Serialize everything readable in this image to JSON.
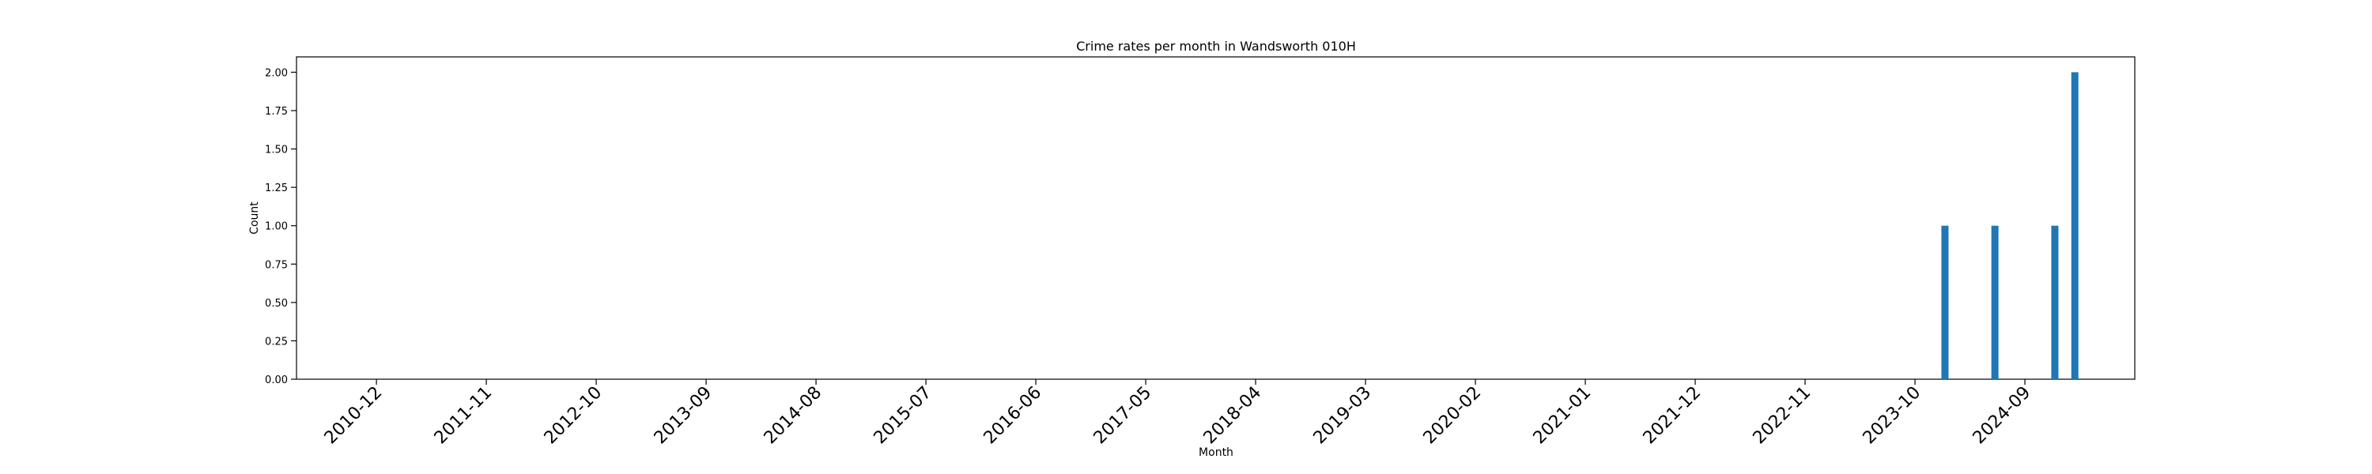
{
  "chart_data": {
    "type": "bar",
    "title": "Crime rates per month in Wandsworth 010H",
    "xlabel": "Month",
    "ylabel": "Count",
    "ylim": [
      0,
      2.1
    ],
    "yticks": [
      "0.00",
      "0.25",
      "0.50",
      "0.75",
      "1.00",
      "1.25",
      "1.50",
      "1.75",
      "2.00"
    ],
    "xticks": [
      "2010-12",
      "2011-11",
      "2012-10",
      "2013-09",
      "2014-08",
      "2015-07",
      "2016-06",
      "2017-05",
      "2018-04",
      "2019-03",
      "2020-02",
      "2021-01",
      "2021-12",
      "2022-11",
      "2023-10",
      "2024-09"
    ],
    "x_start": "2010-04",
    "x_end": "2025-08",
    "bars": [
      {
        "month": "2024-01",
        "value": 1
      },
      {
        "month": "2024-06",
        "value": 1
      },
      {
        "month": "2024-12",
        "value": 1
      },
      {
        "month": "2025-02",
        "value": 2
      }
    ],
    "bar_color": "#1f77b4",
    "grid": false,
    "legend": "none"
  }
}
